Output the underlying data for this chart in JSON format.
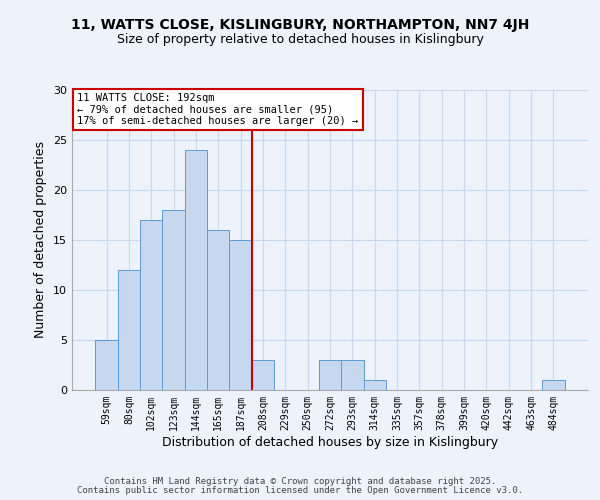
{
  "title1": "11, WATTS CLOSE, KISLINGBURY, NORTHAMPTON, NN7 4JH",
  "title2": "Size of property relative to detached houses in Kislingbury",
  "xlabel": "Distribution of detached houses by size in Kislingbury",
  "ylabel": "Number of detached properties",
  "bin_labels": [
    "59sqm",
    "80sqm",
    "102sqm",
    "123sqm",
    "144sqm",
    "165sqm",
    "187sqm",
    "208sqm",
    "229sqm",
    "250sqm",
    "272sqm",
    "293sqm",
    "314sqm",
    "335sqm",
    "357sqm",
    "378sqm",
    "399sqm",
    "420sqm",
    "442sqm",
    "463sqm",
    "484sqm"
  ],
  "bar_heights": [
    5,
    12,
    17,
    18,
    24,
    16,
    15,
    3,
    0,
    0,
    3,
    3,
    1,
    0,
    0,
    0,
    0,
    0,
    0,
    0,
    1
  ],
  "bar_color": "#c5d8f0",
  "bar_edge_color": "#5b9bd5",
  "grid_color": "#c8d8ee",
  "bg_color": "#edf2fb",
  "vline_color": "#cc0000",
  "annotation_line1": "11 WATTS CLOSE: 192sqm",
  "annotation_line2": "← 79% of detached houses are smaller (95)",
  "annotation_line3": "17% of semi-detached houses are larger (20) →",
  "annotation_box_color": "#ffffff",
  "annotation_box_edge": "#cc0000",
  "ylim": [
    0,
    30
  ],
  "yticks": [
    0,
    5,
    10,
    15,
    20,
    25,
    30
  ],
  "footer1": "Contains HM Land Registry data © Crown copyright and database right 2025.",
  "footer2": "Contains public sector information licensed under the Open Government Licence v3.0."
}
